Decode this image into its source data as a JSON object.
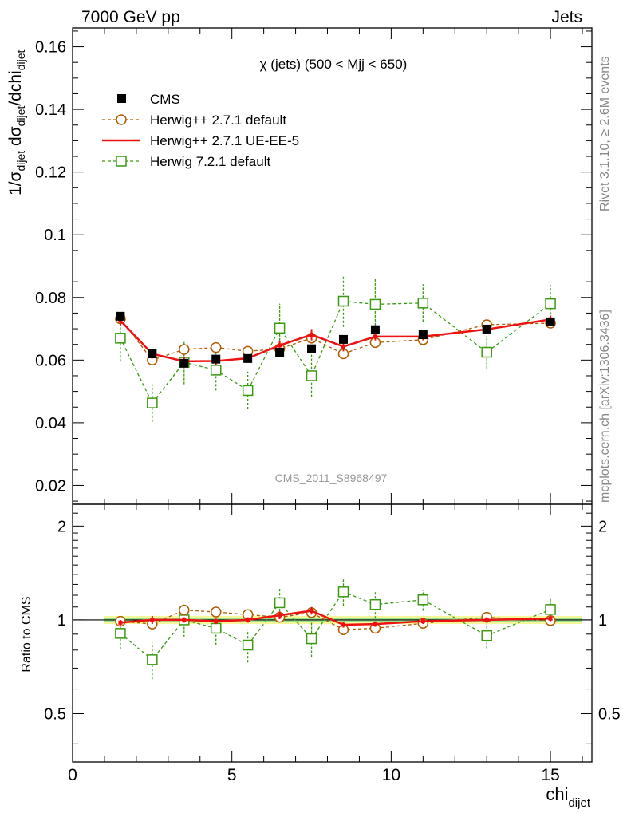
{
  "header": {
    "left": "7000 GeV pp",
    "right": "Jets"
  },
  "side_labels": {
    "rivet": "Rivet 3.1.10, ≥ 2.6M events",
    "mcplots": "mcplots.cern.ch [arXiv:1306.3436]"
  },
  "watermark": "CMS_2011_S8968497",
  "chart_data": {
    "type": "scatter",
    "title": "χ (jets) (500 < Mjj <  650)",
    "xlabel": "chi_dijet",
    "ylabel": "1/σ_dijet dσ_dijet/dchi_dijet",
    "ratio_ylabel": "Ratio to CMS",
    "xlim": [
      0,
      16.3
    ],
    "ylim": [
      0.014,
      0.166
    ],
    "ratio_ylim": [
      0.35,
      2.35
    ],
    "x_ticks": [
      0,
      5,
      10,
      15
    ],
    "y_ticks": [
      0.02,
      0.04,
      0.06,
      0.08,
      0.1,
      0.12,
      0.14,
      0.16
    ],
    "ratio_ticks": [
      0.5,
      1,
      2
    ],
    "legend_position": "top-left",
    "x": [
      1.5,
      2.5,
      3.5,
      4.5,
      5.5,
      6.5,
      7.5,
      8.5,
      9.5,
      11.0,
      13.0,
      15.0
    ],
    "x_errors": [
      0.5,
      0.5,
      0.5,
      0.5,
      0.5,
      0.5,
      0.5,
      0.5,
      0.5,
      1.0,
      1.0,
      1.0
    ],
    "cms_band": {
      "inner": 0.012,
      "outer": 0.03
    },
    "series": [
      {
        "name": "CMS",
        "style": "data",
        "color": "#000000",
        "values": [
          0.074,
          0.062,
          0.059,
          0.0603,
          0.0605,
          0.0625,
          0.0636,
          0.0666,
          0.0697,
          0.0681,
          0.0699,
          0.0722
        ],
        "errors": [
          0.001,
          0.001,
          0.001,
          0.001,
          0.001,
          0.001,
          0.001,
          0.001,
          0.001,
          0.001,
          0.001,
          0.001
        ],
        "ratio": [
          1,
          1,
          1,
          1,
          1,
          1,
          1,
          1,
          1,
          1,
          1,
          1
        ]
      },
      {
        "name": "Herwig++ 2.7.1 default",
        "style": "circle",
        "color": "#b05a00",
        "values": [
          0.0732,
          0.06,
          0.0634,
          0.064,
          0.0628,
          0.0636,
          0.067,
          0.062,
          0.0656,
          0.0665,
          0.0713,
          0.0718
        ],
        "errors": [
          0.0012,
          0.0012,
          0.0012,
          0.0012,
          0.0012,
          0.0012,
          0.0012,
          0.0012,
          0.0012,
          0.0012,
          0.0012,
          0.0012
        ],
        "ratio": [
          0.99,
          0.97,
          1.075,
          1.06,
          1.04,
          1.02,
          1.055,
          0.93,
          0.94,
          0.975,
          1.02,
          0.995
        ],
        "ratio_errors": [
          0.02,
          0.02,
          0.02,
          0.02,
          0.02,
          0.02,
          0.02,
          0.02,
          0.02,
          0.02,
          0.02,
          0.02
        ]
      },
      {
        "name": "Herwig++ 2.7.1 UE-EE-5",
        "style": "line",
        "color": "#ee1111",
        "values": [
          0.0726,
          0.062,
          0.0596,
          0.0597,
          0.0606,
          0.0647,
          0.0681,
          0.0643,
          0.0675,
          0.0675,
          0.0698,
          0.073
        ],
        "errors": [
          0.0015,
          0.0015,
          0.0012,
          0.0012,
          0.0012,
          0.0015,
          0.0018,
          0.0015,
          0.0012,
          0.0012,
          0.0012,
          0.0012
        ],
        "ratio": [
          0.98,
          1.0,
          1.0,
          0.99,
          1.0,
          1.035,
          1.07,
          0.965,
          0.97,
          0.99,
          1.0,
          1.01
        ],
        "ratio_errors": [
          0.02,
          0.03,
          0.02,
          0.02,
          0.02,
          0.03,
          0.03,
          0.02,
          0.02,
          0.02,
          0.02,
          0.02
        ]
      },
      {
        "name": "Herwig 7.2.1 default",
        "style": "square",
        "color": "#3a9a10",
        "values": [
          0.067,
          0.0463,
          0.0593,
          0.0568,
          0.0503,
          0.0702,
          0.055,
          0.0788,
          0.0778,
          0.0782,
          0.0625,
          0.078
        ],
        "errors": [
          0.0075,
          0.006,
          0.007,
          0.0065,
          0.006,
          0.0078,
          0.0068,
          0.0082,
          0.008,
          0.006,
          0.0052,
          0.006
        ],
        "ratio": [
          0.905,
          0.745,
          1.0,
          0.94,
          0.83,
          1.135,
          0.87,
          1.23,
          1.12,
          1.16,
          0.89,
          1.08
        ],
        "ratio_errors": [
          0.1,
          0.1,
          0.12,
          0.11,
          0.1,
          0.13,
          0.11,
          0.12,
          0.11,
          0.09,
          0.08,
          0.09
        ]
      }
    ]
  }
}
